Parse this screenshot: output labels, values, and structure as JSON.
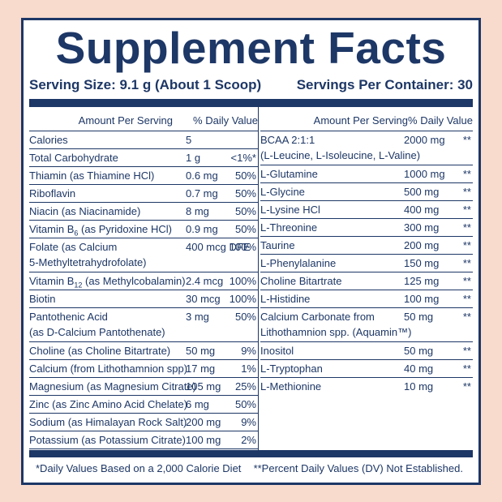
{
  "header": {
    "title": "Supplement Facts",
    "serving_size": "Serving Size: 9.1 g (About 1 Scoop)",
    "servings_per_container": "Servings Per Container: 30"
  },
  "left_column": {
    "amount_header": "Amount Per Serving",
    "dv_header": "% Daily Value",
    "rows": [
      {
        "name": "Calories",
        "amount": "5"
      },
      {
        "name": "Total Carbohydrate",
        "amount": "1 g",
        "dv": "<1%*"
      },
      {
        "name": "Thiamin (as Thiamine HCl)",
        "amount": "0.6 mg",
        "dv": "50%"
      },
      {
        "name": "Riboflavin",
        "amount": "0.7 mg",
        "dv": "50%"
      },
      {
        "name": "Niacin (as Niacinamide)",
        "amount": "8 mg",
        "dv": "50%"
      },
      {
        "name": "Vitamin B",
        "subscript": "6",
        "name_rest": " (as Pyridoxine HCl)",
        "amount": "0.9 mg",
        "dv": "50%"
      },
      {
        "name": "Folate (as Calcium",
        "name_line2": "5-Methyltetrahydrofolate)",
        "amount": "400 mcg DFE",
        "dv": "100%"
      },
      {
        "name": "Vitamin B",
        "subscript": "12",
        "name_rest": " (as Methylcobalamin)",
        "amount": "2.4 mcg",
        "dv": "100%"
      },
      {
        "name": "Biotin",
        "amount": "30 mcg",
        "dv": "100%"
      },
      {
        "name": "Pantothenic Acid",
        "name_line2": "(as D-Calcium Pantothenate)",
        "amount": "3 mg",
        "dv": "50%"
      },
      {
        "name": "Choline (as Choline Bitartrate)",
        "amount": "50 mg",
        "dv": "9%"
      },
      {
        "name": "Calcium (from Lithothamnion spp)",
        "amount": "17 mg",
        "dv": "1%"
      },
      {
        "name": "Magnesium (as Magnesium Citrate)",
        "amount": "105 mg",
        "dv": "25%"
      },
      {
        "name": "Zinc (as Zinc Amino Acid Chelate)",
        "amount": "6 mg",
        "dv": "50%"
      },
      {
        "name": "Sodium (as Himalayan Rock Salt)",
        "amount": "200 mg",
        "dv": "9%"
      },
      {
        "name": "Potassium (as Potassium Citrate)",
        "amount": "100 mg",
        "dv": "2%"
      }
    ]
  },
  "right_column": {
    "amount_header": "Amount Per Serving",
    "dv_header": "% Daily Value",
    "rows": [
      {
        "name": "BCAA 2:1:1",
        "name_line2": "(L-Leucine, L-Isoleucine, L-Valine)",
        "amount": "2000 mg",
        "dv": "**"
      },
      {
        "name": "L-Glutamine",
        "amount": "1000 mg",
        "dv": "**"
      },
      {
        "name": "L-Glycine",
        "amount": "500 mg",
        "dv": "**"
      },
      {
        "name": "L-Lysine HCl",
        "amount": "400 mg",
        "dv": "**"
      },
      {
        "name": "L-Threonine",
        "amount": "300 mg",
        "dv": "**"
      },
      {
        "name": "Taurine",
        "amount": "200 mg",
        "dv": "**"
      },
      {
        "name": "L-Phenylalanine",
        "amount": "150 mg",
        "dv": "**"
      },
      {
        "name": "Choline Bitartrate",
        "amount": "125 mg",
        "dv": "**"
      },
      {
        "name": "L-Histidine",
        "amount": "100 mg",
        "dv": "**"
      },
      {
        "name": "Calcium Carbonate from",
        "name_line2": "Lithothamnion spp. (Aquamin™)",
        "amount": "50 mg",
        "dv": "**"
      },
      {
        "name": "Inositol",
        "amount": "50 mg",
        "dv": "**"
      },
      {
        "name": "L-Tryptophan",
        "amount": "40 mg",
        "dv": "**"
      },
      {
        "name": "L-Methionine",
        "amount": "10 mg",
        "dv": "**"
      }
    ]
  },
  "footnotes": [
    "*Daily Values Based on a 2,000 Calorie Diet",
    "**Percent Daily Values (DV) Not Established."
  ]
}
